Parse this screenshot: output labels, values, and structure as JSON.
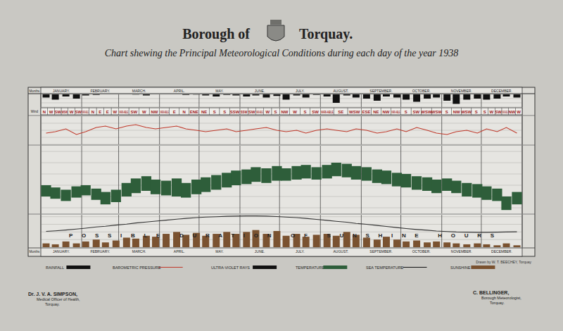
{
  "header": {
    "borough": "Borough of",
    "town": "Torquay.",
    "subtitle": "Chart shewing the Principal Meteorological Conditions during each day of the year 1938"
  },
  "months": [
    "JANUARY.",
    "FEBRUARY.",
    "MARCH.",
    "APRIL.",
    "MAY.",
    "JUNE.",
    "JULY.",
    "AUGUST.",
    "SEPTEMBER.",
    "OCTOBER.",
    "NOVEMBER.",
    "DECEMBER."
  ],
  "side_labels": {
    "months": "Months",
    "wind": "Wind"
  },
  "wind": [
    [
      "N",
      "W",
      "SW",
      "WSW",
      "W",
      "SW"
    ],
    [
      "VARI-ABLE",
      "N",
      "E",
      "E",
      "W"
    ],
    [
      "VARI-ABLE",
      "SW",
      "W",
      "NW"
    ],
    [
      "VARI-ABLE",
      "E",
      "N",
      "ENE"
    ],
    [
      "NE",
      "S",
      "S",
      "SSW"
    ],
    [
      "SSW",
      "SW",
      "VARI-ABLE",
      "W",
      "S"
    ],
    [
      "NW",
      "W",
      "S",
      "SW"
    ],
    [
      "VARI-ABLE",
      "SE",
      "WSW"
    ],
    [
      "ESE",
      "NE",
      "NW",
      "VARI-ABLE"
    ],
    [
      "S",
      "SW",
      "WSW",
      "WSW"
    ],
    [
      "S",
      "NW",
      "WSW",
      "S"
    ],
    [
      "S",
      "W",
      "SW",
      "VARI-ABLE",
      "NW",
      "W"
    ]
  ],
  "chart_data": [
    {
      "type": "bar",
      "title": "RAINFALL",
      "color": "#111111",
      "grid": true,
      "tick_labels": false,
      "x": [
        4,
        11,
        19,
        27,
        34,
        42,
        49,
        57,
        65,
        72,
        80,
        87,
        95,
        103,
        110,
        118,
        125,
        133,
        141,
        148,
        156,
        163,
        171,
        179,
        186,
        194,
        201,
        209,
        217,
        224,
        232,
        239,
        247,
        255,
        262,
        270,
        277,
        285,
        293,
        300,
        308,
        315,
        323,
        331,
        338,
        346,
        353,
        361
      ],
      "xlim": [
        0,
        365
      ],
      "xticks": [
        0,
        31,
        59,
        90,
        120,
        151,
        181,
        212,
        243,
        273,
        304,
        334,
        365
      ],
      "values": [
        0.3,
        0.5,
        0.2,
        0.4,
        0.1,
        0.05,
        0,
        0,
        0,
        0.02,
        0.1,
        0,
        0,
        0,
        0.05,
        0.02,
        0.1,
        0.2,
        0.05,
        0.1,
        0.2,
        0.1,
        0.3,
        0.15,
        0.5,
        0.1,
        0.3,
        0.05,
        0.2,
        0.8,
        0.1,
        0.3,
        0.4,
        0.6,
        0.2,
        0.3,
        0.5,
        0.7,
        0.4,
        0.3,
        0.6,
        0.9,
        0.5,
        0.4,
        0.5,
        0.4,
        0.2,
        0.3
      ],
      "ylim": [
        1.2,
        0
      ],
      "yticks": [
        0,
        0.4,
        0.8,
        1.2
      ]
    },
    {
      "type": "line",
      "grid": true,
      "tick_labels": false,
      "x": [
        4,
        11,
        19,
        27,
        34,
        42,
        49,
        57,
        65,
        72,
        80,
        87,
        95,
        103,
        110,
        118,
        125,
        133,
        141,
        148,
        156,
        163,
        171,
        179,
        186,
        194,
        201,
        209,
        217,
        224,
        232,
        239,
        247,
        255,
        262,
        270,
        277,
        285,
        293,
        300,
        308,
        315,
        323,
        331,
        338,
        346,
        353,
        361
      ],
      "xlim": [
        0,
        365
      ],
      "xticks": [
        0,
        31,
        59,
        90,
        120,
        151,
        181,
        212,
        243,
        273,
        304,
        334,
        365
      ],
      "series": [
        {
          "name": "BAROMETRIC PRESSURE",
          "color": "#c0392b",
          "line_style": "solid",
          "values": [
            29.8,
            29.9,
            30.1,
            29.7,
            29.9,
            30.2,
            30.3,
            30.1,
            30.3,
            30.4,
            30.2,
            30.1,
            30.2,
            30.3,
            30.1,
            30.0,
            29.9,
            30.0,
            30.1,
            29.9,
            30.0,
            30.1,
            30.2,
            30.0,
            29.9,
            30.0,
            29.8,
            30.0,
            30.1,
            30.0,
            29.9,
            30.1,
            30.0,
            29.8,
            29.9,
            30.1,
            29.9,
            30.2,
            30.0,
            29.8,
            29.7,
            29.9,
            30.0,
            29.8,
            30.1,
            29.9,
            30.2,
            29.8
          ]
        }
      ],
      "ylim": [
        29,
        31
      ],
      "yticks": [
        29,
        29.5,
        30,
        30.5,
        31
      ]
    },
    {
      "type": "range",
      "title": "TEMPERATURE",
      "color": "#2e5e3a",
      "grid": true,
      "tick_labels": false,
      "x": [
        4,
        11,
        19,
        27,
        34,
        42,
        49,
        57,
        65,
        72,
        80,
        87,
        95,
        103,
        110,
        118,
        125,
        133,
        141,
        148,
        156,
        163,
        171,
        179,
        186,
        194,
        201,
        209,
        217,
        224,
        232,
        239,
        247,
        255,
        262,
        270,
        277,
        285,
        293,
        300,
        308,
        315,
        323,
        331,
        338,
        346,
        353,
        361
      ],
      "xlim": [
        0,
        365
      ],
      "xticks": [
        0,
        31,
        59,
        90,
        120,
        151,
        181,
        212,
        243,
        273,
        304,
        334,
        365
      ],
      "series": [
        {
          "values": [
            50,
            48,
            46,
            49,
            50,
            47,
            44,
            46,
            52,
            56,
            58,
            55,
            54,
            56,
            52,
            55,
            57,
            59,
            61,
            63,
            64,
            66,
            65,
            67,
            65,
            67,
            68,
            66,
            68,
            70,
            69,
            67,
            66,
            64,
            63,
            61,
            60,
            58,
            57,
            55,
            56,
            54,
            52,
            51,
            49,
            47,
            40,
            44
          ]
        },
        {
          "values": [
            40,
            38,
            36,
            39,
            41,
            37,
            33,
            35,
            40,
            43,
            45,
            42,
            41,
            40,
            39,
            42,
            44,
            46,
            48,
            50,
            51,
            53,
            52,
            54,
            54,
            55,
            56,
            55,
            56,
            58,
            57,
            55,
            54,
            52,
            51,
            49,
            48,
            46,
            45,
            43,
            45,
            43,
            40,
            39,
            37,
            36,
            28,
            33
          ]
        }
      ],
      "ylim": [
        25,
        85
      ],
      "yticks": [
        30,
        40,
        50,
        60,
        70,
        80
      ]
    },
    {
      "type": "bar",
      "grid": true,
      "tick_labels": false,
      "x": [
        4,
        11,
        19,
        27,
        34,
        42,
        49,
        57,
        65,
        72,
        80,
        87,
        95,
        103,
        110,
        118,
        125,
        133,
        141,
        148,
        156,
        163,
        171,
        179,
        186,
        194,
        201,
        209,
        217,
        224,
        232,
        239,
        247,
        255,
        262,
        270,
        277,
        285,
        293,
        300,
        308,
        315,
        323,
        331,
        338,
        346,
        353,
        361
      ],
      "xlim": [
        0,
        365
      ],
      "xticks": [
        0,
        31,
        59,
        90,
        120,
        151,
        181,
        212,
        243,
        273,
        304,
        334,
        365
      ],
      "series": [
        {
          "name": "SUNSHINE",
          "type": "bar",
          "color": "#7a5230",
          "values": [
            2,
            1.5,
            3,
            2,
            3,
            4,
            2.5,
            3.5,
            5,
            4.5,
            6,
            5.5,
            7,
            8,
            6.5,
            7.5,
            6,
            7,
            8,
            7,
            8,
            9,
            7,
            8.5,
            6,
            7,
            5.5,
            6.5,
            7,
            6,
            8,
            6.5,
            5,
            4,
            5.5,
            4,
            3,
            3.5,
            2.5,
            3,
            2.5,
            2,
            1.5,
            2,
            1.5,
            1,
            2,
            1
          ]
        },
        {
          "name": "POSSIBLE DURATION OF SUNSHINE HOURS",
          "type": "line",
          "color": "#333333",
          "line_style": "solid",
          "values": [
            8.3,
            8.6,
            9.0,
            9.5,
            10.0,
            10.6,
            11.0,
            11.6,
            12.1,
            12.7,
            13.2,
            13.7,
            14.2,
            14.7,
            15.1,
            15.5,
            15.8,
            16.0,
            16.2,
            16.3,
            16.4,
            16.4,
            16.3,
            16.1,
            15.8,
            15.5,
            15.1,
            14.6,
            14.1,
            13.6,
            13.1,
            12.5,
            12.0,
            11.4,
            10.9,
            10.3,
            9.8,
            9.3,
            8.9,
            8.5,
            8.2,
            8.0,
            7.9,
            7.8,
            7.8,
            7.9,
            8.0,
            8.1
          ]
        }
      ],
      "ylim": [
        0,
        17
      ],
      "yticks": [
        0,
        4,
        8,
        12,
        16
      ]
    }
  ],
  "footer": {
    "legend_extra": [
      {
        "label": "ULTRA-VIOLET RAYS",
        "color": "#111111"
      },
      {
        "label": "SEA TEMPERATURE",
        "color": "#111111"
      }
    ],
    "drawn_by": "Drawn by W. T. BEECHEY, Torquay",
    "left": [
      "Dr. J. V. A. SIMPSON,",
      "Medical Officer of Health,",
      "Torquay."
    ],
    "right": [
      "C. BELLINGER,",
      "Borough Meteorologist,",
      "Torquay."
    ]
  }
}
